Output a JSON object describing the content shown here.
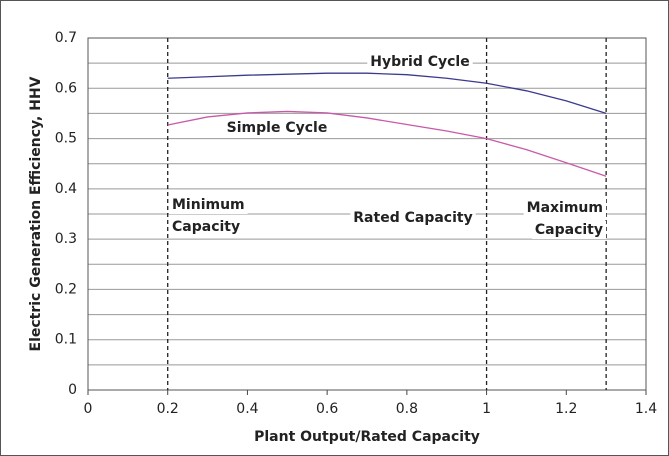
{
  "chart_data": {
    "type": "line",
    "x": [
      0.2,
      0.3,
      0.4,
      0.5,
      0.6,
      0.7,
      0.8,
      0.9,
      1.0,
      1.1,
      1.2,
      1.3
    ],
    "series": [
      {
        "name": "Hybrid Cycle",
        "color": "#3b3b8e",
        "values": [
          0.62,
          0.623,
          0.626,
          0.628,
          0.63,
          0.63,
          0.627,
          0.62,
          0.61,
          0.595,
          0.575,
          0.55
        ]
      },
      {
        "name": "Simple Cycle",
        "color": "#c95aa8",
        "values": [
          0.527,
          0.543,
          0.551,
          0.554,
          0.551,
          0.541,
          0.528,
          0.515,
          0.5,
          0.478,
          0.452,
          0.425
        ]
      }
    ],
    "xlabel": "Plant Output/Rated Capacity",
    "ylabel": "Electric Generation Efficiency, HHV",
    "xlim": [
      0,
      1.4
    ],
    "xticks": [
      0,
      0.2,
      0.4,
      0.6,
      0.8,
      1,
      1.2,
      1.4
    ],
    "ylim": [
      0,
      0.7
    ],
    "yticks": [
      0,
      0.1,
      0.2,
      0.3,
      0.4,
      0.5,
      0.6,
      0.7
    ],
    "y_minor_grid": [
      0.05,
      0.15,
      0.25,
      0.35,
      0.45,
      0.55,
      0.65
    ],
    "grid": true,
    "vlines": [
      0.2,
      1,
      1.3
    ],
    "annotations": [
      {
        "lines": [
          "Minimum",
          "Capacity"
        ]
      },
      {
        "lines": [
          "Rated Capacity"
        ]
      },
      {
        "lines": [
          "Maximum",
          "Capacity"
        ]
      }
    ]
  }
}
